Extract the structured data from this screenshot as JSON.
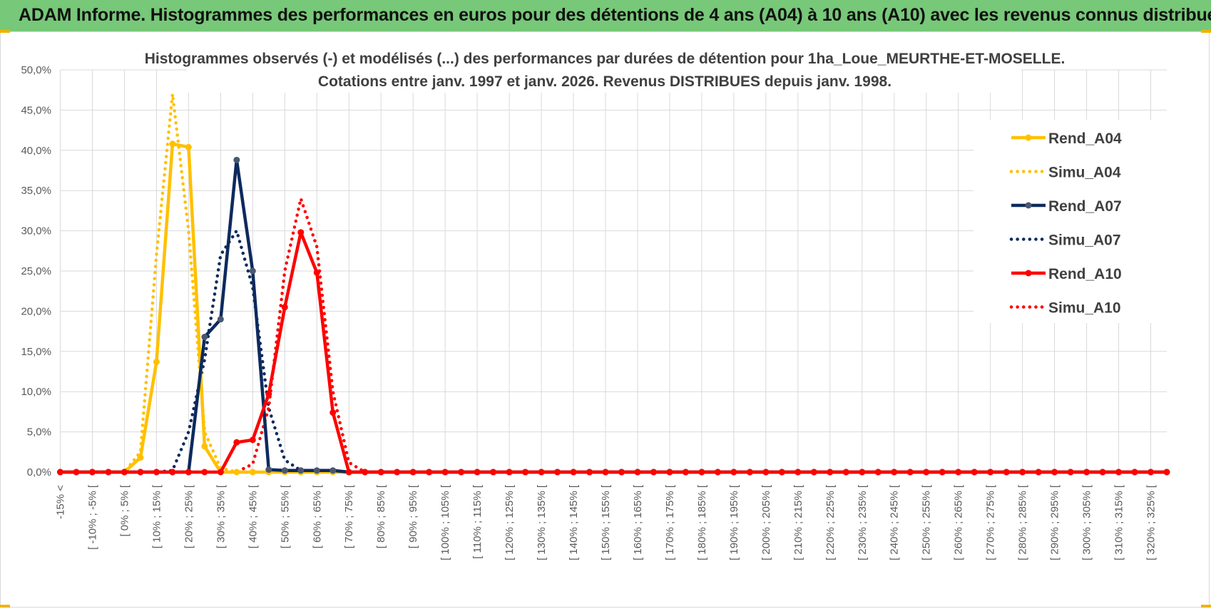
{
  "header": {
    "title": "ADAM Informe. Histogrammes des performances en euros pour des détentions de 4 ans (A04) à 10 ans (A10) avec les revenus connus distribués",
    "background": "#77c878"
  },
  "chart_data": {
    "type": "line",
    "title_line1": "Histogrammes observés (-) et modélisés (...) des performances par durées de détention pour 1ha_Loue_MEURTHE-ET-MOSELLE.",
    "title_line2": "Cotations entre janv. 1997 et janv. 2026. Revenus DISTRIBUES depuis janv. 1998.",
    "y_ticks": [
      "0,0%",
      "5,0%",
      "10,0%",
      "15,0%",
      "20,0%",
      "25,0%",
      "30,0%",
      "35,0%",
      "40,0%",
      "45,0%",
      "50,0%"
    ],
    "ylim": [
      0,
      50
    ],
    "grid": true,
    "legend_position": "top-right",
    "x_tick_labels": [
      "-15% <",
      "[ -10% ; -5% [",
      "[ 0% ; 5% [",
      "[ 10% ; 15% [",
      "[ 20% ; 25% [",
      "[ 30% ; 35% [",
      "[ 40% ; 45% [",
      "[ 50% ; 55% [",
      "[ 60% ; 65% [",
      "[ 70% ; 75% [",
      "[ 80% ; 85% [",
      "[ 90% ; 95% [",
      "[ 100% ; 105% [",
      "[ 110% ; 115% [",
      "[ 120% ; 125% [",
      "[ 130% ; 135% [",
      "[ 140% ; 145% [",
      "[ 150% ; 155% [",
      "[ 160% ; 165% [",
      "[ 170% ; 175% [",
      "[ 180% ; 185% [",
      "[ 190% ; 195% [",
      "[ 200% ; 205% [",
      "[ 210% ; 215% [",
      "[ 220% ; 225% [",
      "[ 230% ; 235% [",
      "[ 240% ; 245% [",
      "[ 250% ; 255% [",
      "[ 260% ; 265% [",
      "[ 270% ; 275% [",
      "[ 280% ; 285% [",
      "[ 290% ; 295% [",
      "[ 300% ; 305% [",
      "[ 310% ; 315% [",
      "[ 320% ; 325% ["
    ],
    "n_categories": 70,
    "series": [
      {
        "name": "Rend_A04",
        "color": "#ffc000",
        "style": "solid",
        "markers": true,
        "values": [
          0,
          0,
          0,
          0,
          0,
          1.8,
          13.7,
          40.8,
          40.4,
          3.2,
          0,
          0,
          0
        ]
      },
      {
        "name": "Simu_A04",
        "color": "#ffc000",
        "style": "dotted",
        "markers": false,
        "values": [
          0,
          0,
          0,
          0,
          0,
          2.5,
          27,
          47,
          30,
          5,
          0.5,
          0,
          0
        ]
      },
      {
        "name": "Rend_A07",
        "color": "#0d2a5e",
        "style": "solid",
        "markers": true,
        "values": [
          0,
          0,
          0,
          0,
          0,
          0,
          0,
          0,
          0,
          16.8,
          19,
          38.8,
          25,
          0.3,
          0.2,
          0.2,
          0.2,
          0.2,
          0
        ]
      },
      {
        "name": "Simu_A07",
        "color": "#0d2a5e",
        "style": "dotted",
        "markers": false,
        "values": [
          0,
          0,
          0,
          0,
          0,
          0,
          0,
          0.2,
          5,
          14,
          27,
          30,
          23,
          8,
          1.5,
          0.2,
          0,
          0,
          0
        ]
      },
      {
        "name": "Rend_A10",
        "color": "#ff0000",
        "style": "solid",
        "markers": true,
        "values": [
          0,
          0,
          0,
          0,
          0,
          0,
          0,
          0,
          0,
          0,
          0,
          3.7,
          4,
          9.7,
          20.5,
          29.8,
          24.8,
          7.4,
          0,
          0,
          0,
          0,
          0,
          0,
          0,
          0,
          0,
          0,
          0,
          0,
          0,
          0,
          0,
          0,
          0,
          0,
          0,
          0,
          0,
          0,
          0,
          0,
          0,
          0,
          0,
          0,
          0,
          0,
          0,
          0,
          0,
          0,
          0,
          0,
          0,
          0,
          0,
          0,
          0,
          0,
          0,
          0,
          0,
          0,
          0,
          0,
          0,
          0,
          0,
          0
        ]
      },
      {
        "name": "Simu_A10",
        "color": "#ff0000",
        "style": "dotted",
        "markers": false,
        "values": [
          0,
          0,
          0,
          0,
          0,
          0,
          0,
          0,
          0,
          0,
          0,
          0,
          1,
          8,
          25,
          34,
          28,
          10,
          1.2,
          0,
          0
        ]
      }
    ]
  }
}
